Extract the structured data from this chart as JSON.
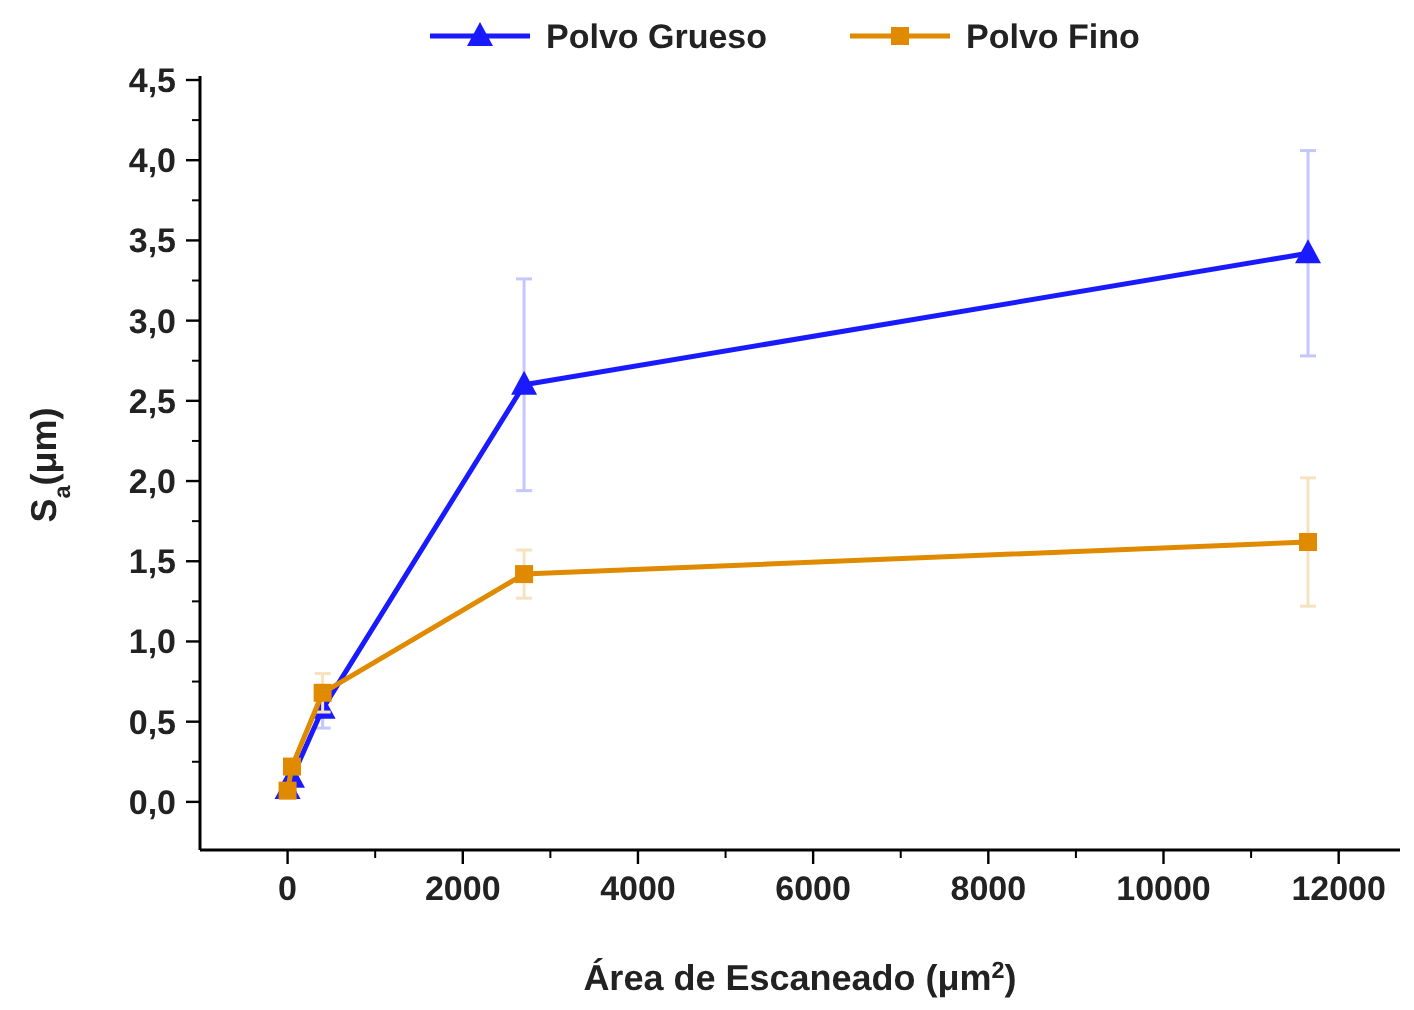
{
  "chart_data": {
    "type": "line",
    "xlabel": "Área de Escaneado (μm$^{2}$)",
    "ylabel": "S$_{a}$(μm)",
    "xlim": [
      -1000,
      12700
    ],
    "xticks": [
      0,
      2000,
      4000,
      6000,
      8000,
      10000,
      12000
    ],
    "ylim": [
      -0.3,
      4.5
    ],
    "yticks": [
      {
        "value": 0,
        "label": "0,0"
      },
      {
        "value": 0.5,
        "label": "0,5"
      },
      {
        "value": 1,
        "label": "1,0"
      },
      {
        "value": 1.5,
        "label": "1,5"
      },
      {
        "value": 2,
        "label": "2,0"
      },
      {
        "value": 2.5,
        "label": "2,5"
      },
      {
        "value": 3,
        "label": "3,0"
      },
      {
        "value": 3.5,
        "label": "3,5"
      },
      {
        "value": 4,
        "label": "4,0"
      },
      {
        "value": 4.5,
        "label": "4,5"
      }
    ],
    "grid": false,
    "legend": "top",
    "line_style": "solid",
    "series": [
      {
        "name": "Polvo Grueso",
        "color": "#1a1aff",
        "marker": "triangle",
        "x": [
          0,
          50,
          400,
          2700,
          11650
        ],
        "values": [
          0.08,
          0.15,
          0.58,
          2.6,
          3.42
        ],
        "errors": [
          null,
          null,
          0.12,
          0.66,
          0.64
        ]
      },
      {
        "name": "Polvo Fino",
        "color": "#e08a00",
        "marker": "square",
        "x": [
          0,
          50,
          400,
          2700,
          11650
        ],
        "values": [
          0.07,
          0.22,
          0.68,
          1.42,
          1.62
        ],
        "errors": [
          null,
          null,
          0.12,
          0.15,
          0.4
        ]
      }
    ]
  }
}
